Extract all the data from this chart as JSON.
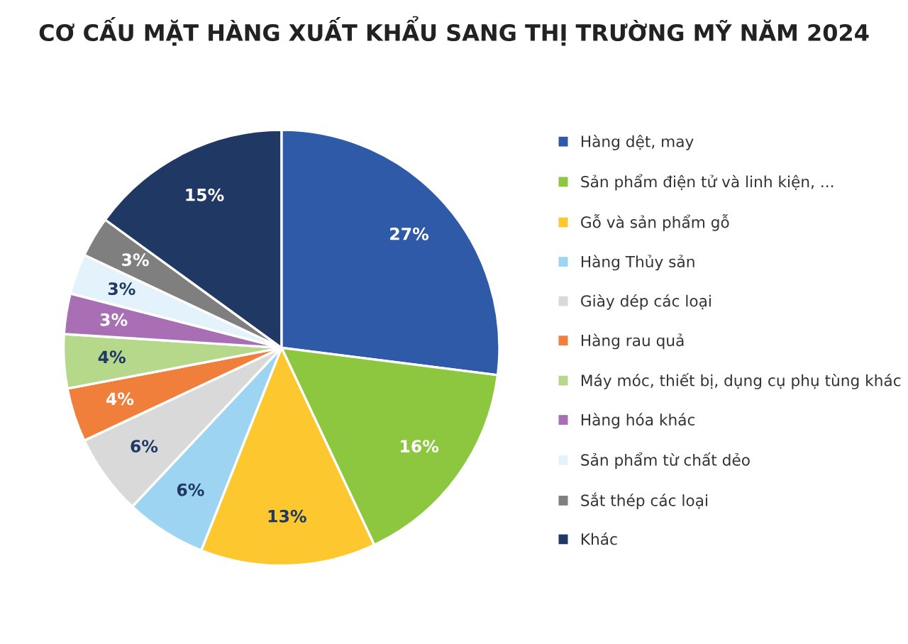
{
  "chart_data": {
    "type": "pie",
    "title": "CƠ CẤU MẶT HÀNG XUẤT KHẨU SANG THỊ TRƯỜNG MỸ NĂM 2024",
    "categories": [
      "Hàng dệt, may",
      "Sản phẩm điện tử và linh kiện, ...",
      "Gỗ và sản phẩm gỗ",
      "Hàng Thủy sản",
      "Giày dép các loại",
      "Hàng rau quả",
      "Máy móc, thiết bị, dụng cụ phụ tùng khác",
      "Hàng hóa khác",
      "Sản phẩm từ chất dẻo",
      "Sắt thép các loại",
      "Khác"
    ],
    "values": [
      27,
      16,
      13,
      6,
      6,
      4,
      4,
      3,
      3,
      3,
      15
    ],
    "colors": [
      "#2e5aa8",
      "#8dc63f",
      "#fdc72f",
      "#9dd4f2",
      "#d9d9d9",
      "#f07f3c",
      "#b5d88a",
      "#a86fb5",
      "#e4f3fb",
      "#7f7f7f",
      "#1f3864"
    ],
    "value_labels": [
      "27%",
      "16%",
      "13%",
      "6%",
      "6%",
      "4%",
      "4%",
      "3%",
      "3%",
      "3%",
      "15%"
    ],
    "legend": "right"
  }
}
